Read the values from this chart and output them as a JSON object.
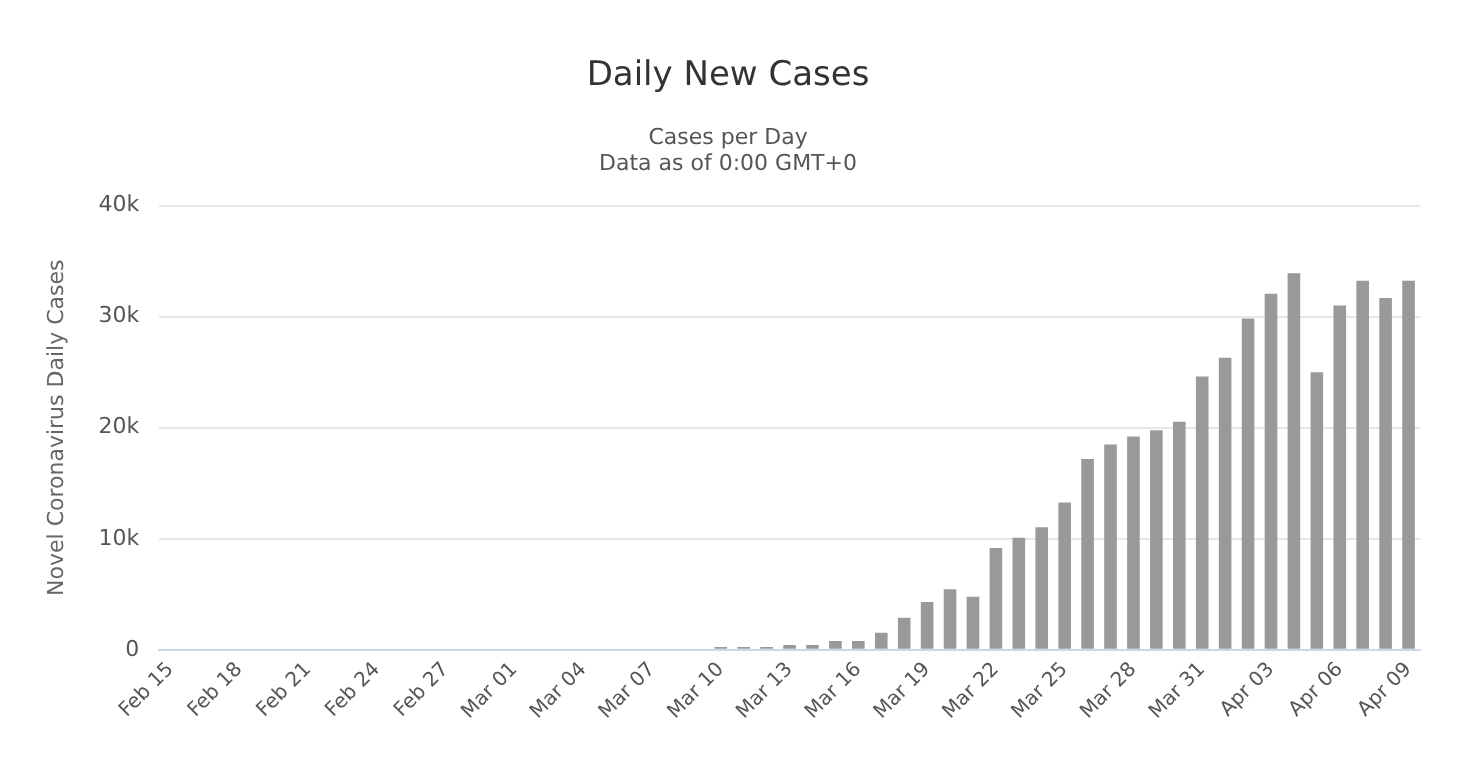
{
  "chart_data": {
    "type": "bar",
    "title": "Daily New Cases",
    "subtitle": "Cases per Day\nData as of 0:00 GMT+0",
    "ylabel": "Novel Coronavirus Daily Cases",
    "categories": [
      "Feb 15",
      null,
      null,
      "Feb 18",
      null,
      null,
      "Feb 21",
      null,
      null,
      "Feb 24",
      null,
      null,
      "Feb 27",
      null,
      null,
      "Mar 01",
      null,
      null,
      "Mar 04",
      null,
      null,
      "Mar 07",
      null,
      null,
      "Mar 10",
      null,
      null,
      "Mar 13",
      null,
      null,
      "Mar 16",
      null,
      null,
      "Mar 19",
      null,
      null,
      "Mar 22",
      null,
      null,
      "Mar 25",
      null,
      null,
      "Mar 28",
      null,
      null,
      "Mar 31",
      null,
      null,
      "Apr 03",
      null,
      null,
      "Apr 06",
      null,
      null,
      "Apr 09"
    ],
    "values": [
      0,
      0,
      0,
      0,
      0,
      0,
      0,
      0,
      0,
      0,
      0,
      0,
      0,
      0,
      0,
      0,
      0,
      0,
      0,
      0,
      0,
      0,
      0,
      0,
      250,
      250,
      250,
      430,
      430,
      800,
      800,
      1550,
      2900,
      4300,
      5450,
      4780,
      9180,
      10100,
      11040,
      13270,
      17180,
      18480,
      19220,
      19780,
      20530,
      24620,
      26290,
      29830,
      32060,
      33920,
      24990,
      31010,
      33240,
      31690,
      33240
    ],
    "color": "#999999",
    "ylim": [
      0,
      40000
    ],
    "yticks": [
      {
        "value": 0,
        "label": "0"
      },
      {
        "value": 10000,
        "label": "10k"
      },
      {
        "value": 20000,
        "label": "20k"
      },
      {
        "value": 30000,
        "label": "30k"
      },
      {
        "value": 40000,
        "label": "40k"
      }
    ],
    "grid": "y"
  }
}
